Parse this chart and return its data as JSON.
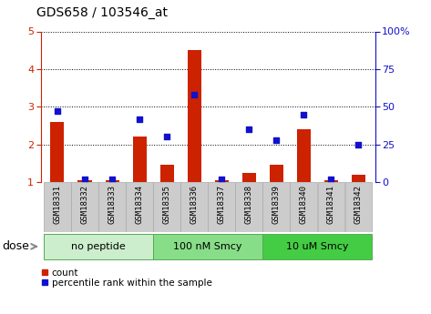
{
  "title": "GDS658 / 103546_at",
  "samples": [
    "GSM18331",
    "GSM18332",
    "GSM18333",
    "GSM18334",
    "GSM18335",
    "GSM18336",
    "GSM18337",
    "GSM18338",
    "GSM18339",
    "GSM18340",
    "GSM18341",
    "GSM18342"
  ],
  "count_values": [
    2.6,
    1.05,
    1.05,
    2.2,
    1.45,
    4.5,
    1.05,
    1.25,
    1.45,
    2.4,
    1.05,
    1.2
  ],
  "percentile_values": [
    47,
    2,
    2,
    42,
    30,
    58,
    2,
    35,
    28,
    45,
    2,
    25
  ],
  "ylim_left": [
    1,
    5
  ],
  "ylim_right": [
    0,
    100
  ],
  "yticks_left": [
    1,
    2,
    3,
    4,
    5
  ],
  "yticks_right": [
    0,
    25,
    50,
    75,
    100
  ],
  "ytick_labels_right": [
    "0",
    "25",
    "50",
    "75",
    "100%"
  ],
  "bar_color": "#cc2200",
  "dot_color": "#1111cc",
  "groups": [
    {
      "label": "no peptide",
      "start": 0,
      "end": 4,
      "color": "#cceecc"
    },
    {
      "label": "100 nM Smcy",
      "start": 4,
      "end": 8,
      "color": "#88dd88"
    },
    {
      "label": "10 uM Smcy",
      "start": 8,
      "end": 12,
      "color": "#44cc44"
    }
  ],
  "dose_label": "dose",
  "legend_count_label": "count",
  "legend_pct_label": "percentile rank within the sample",
  "bar_width": 0.5,
  "tick_bg_color": "#cccccc",
  "plot_bg_color": "#ffffff",
  "grid_color": "#000000",
  "title_fontsize": 10,
  "axis_fontsize": 8,
  "label_fontsize": 8
}
